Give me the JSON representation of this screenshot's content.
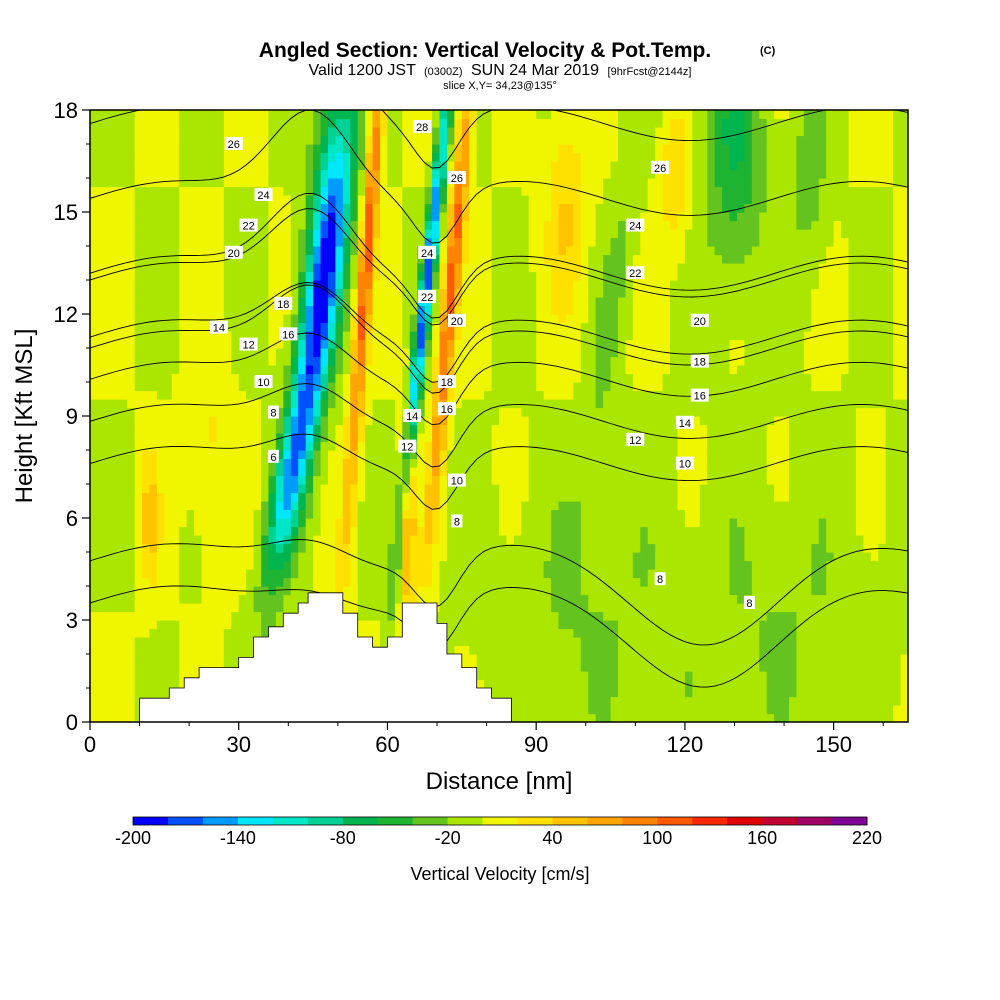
{
  "chart_data": {
    "type": "heatmap",
    "title": "Angled Section: Vertical Velocity & Pot.Temp.",
    "title_suffix": "(C)",
    "subtitle": {
      "valid": "Valid 1200 JST",
      "zulu": "(0300Z)",
      "date": "SUN 24 Mar 2019",
      "forecast": "[9hrFcst@2144z]"
    },
    "slice_label": "slice X,Y= 34,23@135°",
    "xlabel": "Distance [nm]",
    "ylabel": "Height [Kft MSL]",
    "xlim": [
      0,
      165
    ],
    "ylim": [
      0,
      18
    ],
    "x_ticks": [
      "0",
      "30",
      "60",
      "90",
      "120",
      "150"
    ],
    "x_tick_values": [
      0,
      30,
      60,
      90,
      120,
      150
    ],
    "y_ticks": [
      "0",
      "3",
      "6",
      "9",
      "12",
      "15",
      "18"
    ],
    "y_tick_values": [
      0,
      3,
      6,
      9,
      12,
      15,
      18
    ],
    "colorbar": {
      "label": "Vertical Velocity [cm/s]",
      "tick_labels": [
        "-200",
        "-140",
        "-80",
        "-20",
        "40",
        "100",
        "160",
        "220"
      ],
      "tick_values": [
        -200,
        -140,
        -80,
        -20,
        40,
        100,
        160,
        220
      ],
      "min": -200,
      "max": 220,
      "colors": [
        "#0000ff",
        "#0050ff",
        "#009bff",
        "#00e6ff",
        "#00e6c8",
        "#00d296",
        "#00b450",
        "#1eb432",
        "#64c31e",
        "#aae600",
        "#f0f500",
        "#ffe100",
        "#ffc300",
        "#ffa500",
        "#ff8200",
        "#ff5a00",
        "#f52800",
        "#e10000",
        "#c30032",
        "#a00064",
        "#800096"
      ]
    },
    "terrain": [
      [
        10,
        0.3
      ],
      [
        10,
        0.7
      ],
      [
        16,
        0.7
      ],
      [
        16,
        1.0
      ],
      [
        19,
        1.0
      ],
      [
        19,
        1.3
      ],
      [
        22,
        1.3
      ],
      [
        22,
        1.6
      ],
      [
        30,
        1.6
      ],
      [
        30,
        1.9
      ],
      [
        33,
        1.9
      ],
      [
        33,
        2.5
      ],
      [
        36,
        2.5
      ],
      [
        36,
        2.8
      ],
      [
        39,
        2.8
      ],
      [
        39,
        3.2
      ],
      [
        42,
        3.2
      ],
      [
        42,
        3.5
      ],
      [
        44,
        3.5
      ],
      [
        44,
        3.8
      ],
      [
        51,
        3.8
      ],
      [
        51,
        3.2
      ],
      [
        54,
        3.2
      ],
      [
        54,
        2.5
      ],
      [
        57,
        2.5
      ],
      [
        57,
        2.2
      ],
      [
        60,
        2.2
      ],
      [
        60,
        2.5
      ],
      [
        63,
        2.5
      ],
      [
        63,
        3.5
      ],
      [
        70,
        3.5
      ],
      [
        70,
        2.9
      ],
      [
        72,
        2.9
      ],
      [
        72,
        2.0
      ],
      [
        75,
        2.0
      ],
      [
        75,
        1.6
      ],
      [
        78,
        1.6
      ],
      [
        78,
        1.0
      ],
      [
        81,
        1.0
      ],
      [
        81,
        0.7
      ],
      [
        85,
        0.7
      ],
      [
        85,
        0.3
      ]
    ],
    "field_lows": [
      {
        "x": 45,
        "y": 11,
        "sx": 3.5,
        "sy": 6,
        "amp": -140,
        "tilt": 0.22
      },
      {
        "x": 48,
        "y": 15,
        "sx": 4,
        "sy": 5,
        "amp": -90,
        "tilt": 0.1
      },
      {
        "x": 68,
        "y": 13,
        "sx": 1.3,
        "sy": 7,
        "amp": -170,
        "tilt": 0.15
      },
      {
        "x": 40,
        "y": 7,
        "sx": 3,
        "sy": 2.5,
        "amp": -60,
        "tilt": 0.3
      },
      {
        "x": 130,
        "y": 17,
        "sx": 6,
        "sy": 4,
        "amp": -60,
        "tilt": 0
      },
      {
        "x": 145,
        "y": 16,
        "sx": 4,
        "sy": 3,
        "amp": -30,
        "tilt": 0
      },
      {
        "x": 105,
        "y": 12,
        "sx": 3,
        "sy": 6,
        "amp": -25,
        "tilt": 0.2
      },
      {
        "x": 100,
        "y": 3,
        "sx": 20,
        "sy": 4,
        "amp": -20,
        "tilt": 0
      },
      {
        "x": 140,
        "y": 3,
        "sx": 20,
        "sy": 4,
        "amp": -20,
        "tilt": 0
      }
    ],
    "field_highs": [
      {
        "x": 56,
        "y": 14,
        "sx": 1.5,
        "sy": 8,
        "amp": 110,
        "tilt": 0.1
      },
      {
        "x": 64,
        "y": 6,
        "sx": 1.5,
        "sy": 3,
        "amp": 70,
        "tilt": 0
      },
      {
        "x": 73,
        "y": 13,
        "sx": 1.6,
        "sy": 7,
        "amp": 110,
        "tilt": 0.12
      },
      {
        "x": 12,
        "y": 6,
        "sx": 2,
        "sy": 2,
        "amp": 45,
        "tilt": 0
      },
      {
        "x": 24,
        "y": 8,
        "sx": 4,
        "sy": 3,
        "amp": 25,
        "tilt": 0
      },
      {
        "x": 96,
        "y": 15,
        "sx": 4,
        "sy": 3,
        "amp": 40,
        "tilt": 0
      },
      {
        "x": 118,
        "y": 16,
        "sx": 3,
        "sy": 2,
        "amp": 40,
        "tilt": 0
      }
    ],
    "theta_contours": {
      "levels": [
        6,
        8,
        10,
        12,
        14,
        16,
        18,
        20,
        22,
        24,
        26,
        28
      ],
      "labels": [
        {
          "text": "26",
          "x": 29,
          "y": 17.0
        },
        {
          "text": "24",
          "x": 35,
          "y": 15.5
        },
        {
          "text": "22",
          "x": 32,
          "y": 14.6
        },
        {
          "text": "20",
          "x": 29,
          "y": 13.8
        },
        {
          "text": "18",
          "x": 39,
          "y": 12.3
        },
        {
          "text": "16",
          "x": 40,
          "y": 11.4
        },
        {
          "text": "14",
          "x": 26,
          "y": 11.6
        },
        {
          "text": "12",
          "x": 32,
          "y": 11.1
        },
        {
          "text": "10",
          "x": 35,
          "y": 10.0
        },
        {
          "text": "8",
          "x": 37,
          "y": 9.1
        },
        {
          "text": "6",
          "x": 37,
          "y": 7.8
        },
        {
          "text": "28",
          "x": 67,
          "y": 17.5
        },
        {
          "text": "26",
          "x": 74,
          "y": 16.0
        },
        {
          "text": "24",
          "x": 68,
          "y": 13.8
        },
        {
          "text": "22",
          "x": 68,
          "y": 12.5
        },
        {
          "text": "20",
          "x": 74,
          "y": 11.8
        },
        {
          "text": "18",
          "x": 72,
          "y": 10.0
        },
        {
          "text": "16",
          "x": 72,
          "y": 9.2
        },
        {
          "text": "14",
          "x": 65,
          "y": 9.0
        },
        {
          "text": "12",
          "x": 64,
          "y": 8.1
        },
        {
          "text": "10",
          "x": 74,
          "y": 7.1
        },
        {
          "text": "8",
          "x": 74,
          "y": 5.9
        },
        {
          "text": "26",
          "x": 115,
          "y": 16.3
        },
        {
          "text": "24",
          "x": 110,
          "y": 14.6
        },
        {
          "text": "22",
          "x": 110,
          "y": 13.2
        },
        {
          "text": "20",
          "x": 123,
          "y": 11.8
        },
        {
          "text": "18",
          "x": 123,
          "y": 10.6
        },
        {
          "text": "16",
          "x": 123,
          "y": 9.6
        },
        {
          "text": "14",
          "x": 120,
          "y": 8.8
        },
        {
          "text": "12",
          "x": 110,
          "y": 8.3
        },
        {
          "text": "10",
          "x": 120,
          "y": 7.6
        },
        {
          "text": "8",
          "x": 115,
          "y": 4.2
        },
        {
          "text": "8",
          "x": 133,
          "y": 3.5
        }
      ]
    }
  }
}
